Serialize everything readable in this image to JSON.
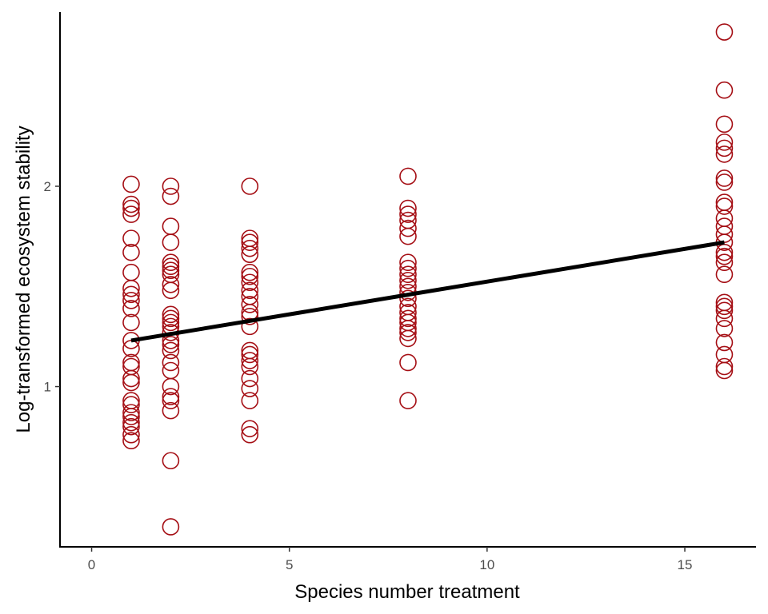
{
  "chart_data": {
    "type": "scatter",
    "title": "",
    "xlabel": "Species number treatment",
    "ylabel": "Log-transformed ecosystem stability",
    "xlim": [
      -0.8,
      16.8
    ],
    "ylim": [
      0.2,
      2.87
    ],
    "x_ticks": [
      0,
      5,
      10,
      15
    ],
    "x_tick_labels": [
      "0",
      "5",
      "10",
      "15"
    ],
    "y_ticks": [
      1,
      2
    ],
    "y_tick_labels": [
      "1",
      "2"
    ],
    "grid": false,
    "legend": "none",
    "point_color": "#A50F15",
    "point_style": "open-circle",
    "line_color": "#000000",
    "series": [
      {
        "name": "observations",
        "points": [
          {
            "x": 1,
            "y": 2.01
          },
          {
            "x": 1,
            "y": 1.91
          },
          {
            "x": 1,
            "y": 1.89
          },
          {
            "x": 1,
            "y": 1.86
          },
          {
            "x": 1,
            "y": 1.74
          },
          {
            "x": 1,
            "y": 1.67
          },
          {
            "x": 1,
            "y": 1.57
          },
          {
            "x": 1,
            "y": 1.49
          },
          {
            "x": 1,
            "y": 1.46
          },
          {
            "x": 1,
            "y": 1.43
          },
          {
            "x": 1,
            "y": 1.39
          },
          {
            "x": 1,
            "y": 1.32
          },
          {
            "x": 1,
            "y": 1.23
          },
          {
            "x": 1,
            "y": 1.19
          },
          {
            "x": 1,
            "y": 1.12
          },
          {
            "x": 1,
            "y": 1.1
          },
          {
            "x": 1,
            "y": 1.04
          },
          {
            "x": 1,
            "y": 1.02
          },
          {
            "x": 1,
            "y": 0.93
          },
          {
            "x": 1,
            "y": 0.91
          },
          {
            "x": 1,
            "y": 0.87
          },
          {
            "x": 1,
            "y": 0.85
          },
          {
            "x": 1,
            "y": 0.82
          },
          {
            "x": 1,
            "y": 0.8
          },
          {
            "x": 1,
            "y": 0.76
          },
          {
            "x": 1,
            "y": 0.73
          },
          {
            "x": 2,
            "y": 2.0
          },
          {
            "x": 2,
            "y": 1.95
          },
          {
            "x": 2,
            "y": 1.8
          },
          {
            "x": 2,
            "y": 1.72
          },
          {
            "x": 2,
            "y": 1.62
          },
          {
            "x": 2,
            "y": 1.6
          },
          {
            "x": 2,
            "y": 1.58
          },
          {
            "x": 2,
            "y": 1.56
          },
          {
            "x": 2,
            "y": 1.51
          },
          {
            "x": 2,
            "y": 1.48
          },
          {
            "x": 2,
            "y": 1.36
          },
          {
            "x": 2,
            "y": 1.34
          },
          {
            "x": 2,
            "y": 1.32
          },
          {
            "x": 2,
            "y": 1.3
          },
          {
            "x": 2,
            "y": 1.27
          },
          {
            "x": 2,
            "y": 1.23
          },
          {
            "x": 2,
            "y": 1.21
          },
          {
            "x": 2,
            "y": 1.18
          },
          {
            "x": 2,
            "y": 1.12
          },
          {
            "x": 2,
            "y": 1.08
          },
          {
            "x": 2,
            "y": 1.0
          },
          {
            "x": 2,
            "y": 0.95
          },
          {
            "x": 2,
            "y": 0.93
          },
          {
            "x": 2,
            "y": 0.88
          },
          {
            "x": 2,
            "y": 0.63
          },
          {
            "x": 2,
            "y": 0.3
          },
          {
            "x": 4,
            "y": 2.0
          },
          {
            "x": 4,
            "y": 1.74
          },
          {
            "x": 4,
            "y": 1.72
          },
          {
            "x": 4,
            "y": 1.69
          },
          {
            "x": 4,
            "y": 1.66
          },
          {
            "x": 4,
            "y": 1.57
          },
          {
            "x": 4,
            "y": 1.55
          },
          {
            "x": 4,
            "y": 1.52
          },
          {
            "x": 4,
            "y": 1.48
          },
          {
            "x": 4,
            "y": 1.45
          },
          {
            "x": 4,
            "y": 1.41
          },
          {
            "x": 4,
            "y": 1.37
          },
          {
            "x": 4,
            "y": 1.35
          },
          {
            "x": 4,
            "y": 1.3
          },
          {
            "x": 4,
            "y": 1.18
          },
          {
            "x": 4,
            "y": 1.16
          },
          {
            "x": 4,
            "y": 1.13
          },
          {
            "x": 4,
            "y": 1.1
          },
          {
            "x": 4,
            "y": 1.04
          },
          {
            "x": 4,
            "y": 0.99
          },
          {
            "x": 4,
            "y": 0.93
          },
          {
            "x": 4,
            "y": 0.79
          },
          {
            "x": 4,
            "y": 0.76
          },
          {
            "x": 8,
            "y": 2.05
          },
          {
            "x": 8,
            "y": 1.89
          },
          {
            "x": 8,
            "y": 1.86
          },
          {
            "x": 8,
            "y": 1.83
          },
          {
            "x": 8,
            "y": 1.79
          },
          {
            "x": 8,
            "y": 1.75
          },
          {
            "x": 8,
            "y": 1.62
          },
          {
            "x": 8,
            "y": 1.59
          },
          {
            "x": 8,
            "y": 1.56
          },
          {
            "x": 8,
            "y": 1.53
          },
          {
            "x": 8,
            "y": 1.5
          },
          {
            "x": 8,
            "y": 1.47
          },
          {
            "x": 8,
            "y": 1.44
          },
          {
            "x": 8,
            "y": 1.4
          },
          {
            "x": 8,
            "y": 1.37
          },
          {
            "x": 8,
            "y": 1.34
          },
          {
            "x": 8,
            "y": 1.32
          },
          {
            "x": 8,
            "y": 1.29
          },
          {
            "x": 8,
            "y": 1.27
          },
          {
            "x": 8,
            "y": 1.24
          },
          {
            "x": 8,
            "y": 1.12
          },
          {
            "x": 8,
            "y": 0.93
          },
          {
            "x": 16,
            "y": 2.77
          },
          {
            "x": 16,
            "y": 2.48
          },
          {
            "x": 16,
            "y": 2.31
          },
          {
            "x": 16,
            "y": 2.22
          },
          {
            "x": 16,
            "y": 2.19
          },
          {
            "x": 16,
            "y": 2.16
          },
          {
            "x": 16,
            "y": 2.04
          },
          {
            "x": 16,
            "y": 2.02
          },
          {
            "x": 16,
            "y": 1.92
          },
          {
            "x": 16,
            "y": 1.9
          },
          {
            "x": 16,
            "y": 1.84
          },
          {
            "x": 16,
            "y": 1.8
          },
          {
            "x": 16,
            "y": 1.76
          },
          {
            "x": 16,
            "y": 1.72
          },
          {
            "x": 16,
            "y": 1.67
          },
          {
            "x": 16,
            "y": 1.65
          },
          {
            "x": 16,
            "y": 1.62
          },
          {
            "x": 16,
            "y": 1.56
          },
          {
            "x": 16,
            "y": 1.42
          },
          {
            "x": 16,
            "y": 1.4
          },
          {
            "x": 16,
            "y": 1.38
          },
          {
            "x": 16,
            "y": 1.34
          },
          {
            "x": 16,
            "y": 1.29
          },
          {
            "x": 16,
            "y": 1.22
          },
          {
            "x": 16,
            "y": 1.16
          },
          {
            "x": 16,
            "y": 1.1
          },
          {
            "x": 16,
            "y": 1.08
          }
        ]
      }
    ],
    "fit_line": {
      "name": "linear fit",
      "x": [
        1,
        16
      ],
      "y": [
        1.23,
        1.72
      ]
    }
  }
}
